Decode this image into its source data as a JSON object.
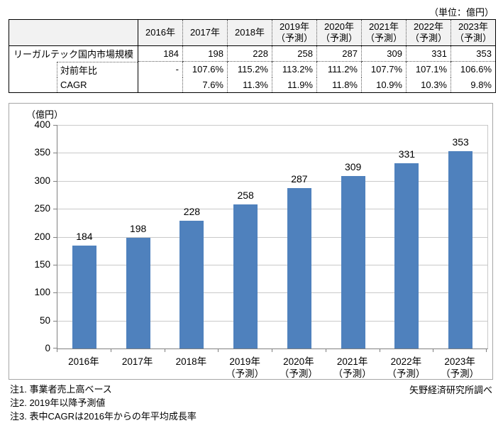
{
  "unit_note": "（単位：億円）",
  "table": {
    "corner": "",
    "columns": [
      {
        "line1": "2016年",
        "line2": ""
      },
      {
        "line1": "2017年",
        "line2": ""
      },
      {
        "line1": "2018年",
        "line2": ""
      },
      {
        "line1": "2019年",
        "line2": "（予測）"
      },
      {
        "line1": "2020年",
        "line2": "（予測）"
      },
      {
        "line1": "2021年",
        "line2": "（予測）"
      },
      {
        "line1": "2022年",
        "line2": "（予測）"
      },
      {
        "line1": "2023年",
        "line2": "（予測）"
      }
    ],
    "rows": [
      {
        "label": "リーガルテック国内市場規模",
        "indent": false,
        "values": [
          "184",
          "198",
          "228",
          "258",
          "287",
          "309",
          "331",
          "353"
        ]
      },
      {
        "label": "対前年比",
        "indent": true,
        "values": [
          "-",
          "107.6%",
          "115.2%",
          "113.2%",
          "111.2%",
          "107.7%",
          "107.1%",
          "106.6%"
        ]
      },
      {
        "label": "CAGR",
        "indent": true,
        "values": [
          "",
          "7.6%",
          "11.3%",
          "11.9%",
          "11.8%",
          "10.9%",
          "10.3%",
          "9.8%"
        ]
      }
    ]
  },
  "chart_data": {
    "type": "bar",
    "title": "",
    "series_name": "リーガルテック国内市場規模",
    "unit_label": "（億円）",
    "categories": [
      "2016年",
      "2017年",
      "2018年",
      "2019年（予測）",
      "2020年（予測）",
      "2021年（予測）",
      "2022年（予測）",
      "2023年（予測）"
    ],
    "x_labels": [
      {
        "line1": "2016年",
        "line2": ""
      },
      {
        "line1": "2017年",
        "line2": ""
      },
      {
        "line1": "2018年",
        "line2": ""
      },
      {
        "line1": "2019年",
        "line2": "（予測）"
      },
      {
        "line1": "2020年",
        "line2": "（予測）"
      },
      {
        "line1": "2021年",
        "line2": "（予測）"
      },
      {
        "line1": "2022年",
        "line2": "（予測）"
      },
      {
        "line1": "2023年",
        "line2": "（予測）"
      }
    ],
    "values": [
      184,
      198,
      228,
      258,
      287,
      309,
      331,
      353
    ],
    "ylim": [
      0,
      400
    ],
    "ytick_step": 50,
    "grid": true,
    "legend_position": "none",
    "bar_color": "#4F81BD",
    "bar_labels": true
  },
  "notes": [
    "注1. 事業者売上高ベース",
    "注2. 2019年以降予測値",
    "注3. 表中CAGRは2016年からの年平均成長率"
  ],
  "source": "矢野経済研究所調べ"
}
